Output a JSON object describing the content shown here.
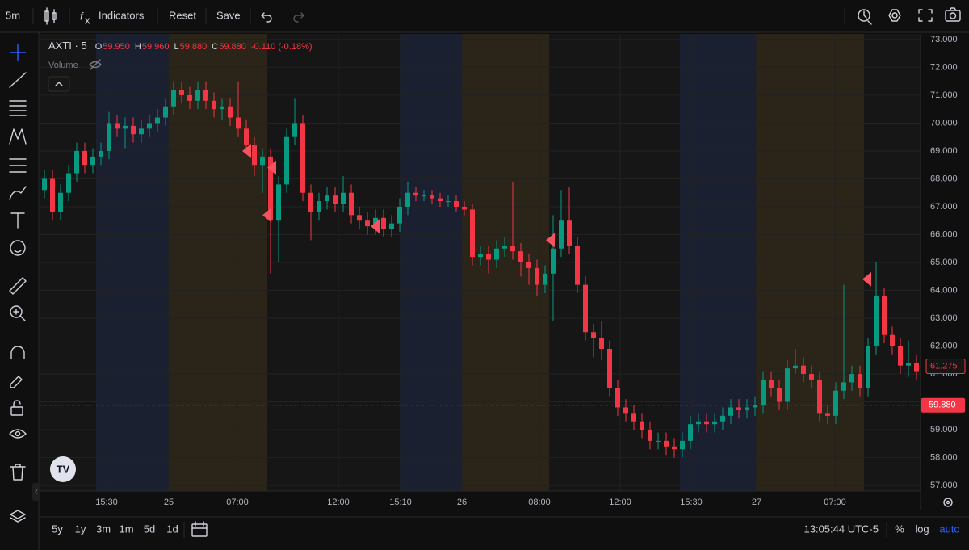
{
  "toolbar": {
    "interval": "5m",
    "indicators": "Indicators",
    "reset": "Reset",
    "save": "Save"
  },
  "chart_data": {
    "type": "candlestick",
    "symbol": "AXTI · 5",
    "ohlc": [
      {
        "key": "O",
        "value": {
          "value": 59.95,
          "label": "59.950"
        }
      },
      {
        "key": "H",
        "value": {
          "value": 59.96,
          "label": "59.960"
        }
      },
      {
        "key": "L",
        "value": {
          "value": 59.88,
          "label": "59.880"
        }
      },
      {
        "key": "C",
        "value": {
          "value": 59.88,
          "label": "59.880"
        }
      }
    ],
    "change": "-0.110 (-0.18%)",
    "volume": "Volume",
    "up_color": "#089981",
    "down_color": "#f23645",
    "ylim": [
      56.8,
      73.2
    ],
    "yticks": [
      {
        "value": 73,
        "label": "73.000"
      },
      {
        "value": 72,
        "label": "72.000"
      },
      {
        "value": 71,
        "label": "71.000"
      },
      {
        "value": 70,
        "label": "70.000"
      },
      {
        "value": 69,
        "label": "69.000"
      },
      {
        "value": 68,
        "label": "68.000"
      },
      {
        "value": 67,
        "label": "67.000"
      },
      {
        "value": 66,
        "label": "66.000"
      },
      {
        "value": 65,
        "label": "65.000"
      },
      {
        "value": 64,
        "label": "64.000"
      },
      {
        "value": 63,
        "label": "63.000"
      },
      {
        "value": 62,
        "label": "62.000"
      },
      {
        "value": 61,
        "label": "61.000"
      },
      {
        "value": 60,
        "label": "60.000"
      },
      {
        "value": 59,
        "label": "59.000"
      },
      {
        "value": 58,
        "label": "58.000"
      },
      {
        "value": 57,
        "label": "57.000"
      }
    ],
    "xlim": [
      0,
      109
    ],
    "xticks": [
      {
        "value": 8.2,
        "label": "15:30"
      },
      {
        "value": 15.9,
        "label": "25"
      },
      {
        "value": 24.4,
        "label": "07:00"
      },
      {
        "value": 36.9,
        "label": "12:00"
      },
      {
        "value": 44.6,
        "label": "15:10"
      },
      {
        "value": 52.2,
        "label": "26"
      },
      {
        "value": 61.8,
        "label": "08:00"
      },
      {
        "value": 71.8,
        "label": "12:00"
      },
      {
        "value": 80.6,
        "label": "15:30"
      },
      {
        "value": 88.7,
        "label": "27"
      },
      {
        "value": 98.4,
        "label": "07:00"
      }
    ],
    "grid": true,
    "sessions": [
      {
        "start": 6.9,
        "end": 15.9,
        "color": "#1a2030"
      },
      {
        "start": 15.9,
        "end": 28.1,
        "color": "#2a2419"
      },
      {
        "start": 44.5,
        "end": 52.2,
        "color": "#1a2030"
      },
      {
        "start": 52.2,
        "end": 63,
        "color": "#2a2419"
      },
      {
        "start": 79.2,
        "end": 88.6,
        "color": "#1a2030"
      },
      {
        "start": 88.6,
        "end": 102,
        "color": "#2a2419"
      }
    ],
    "open": [
      67.6,
      68,
      66.8,
      67.5,
      68.2,
      69,
      68.5,
      68.8,
      69,
      70,
      69.8,
      69.9,
      69.6,
      69.8,
      70,
      70.2,
      70.6,
      71.2,
      71,
      70.8,
      71.2,
      70.8,
      70.5,
      70.6,
      70.2,
      69.8,
      69.2,
      68.5,
      68.8,
      66.5,
      67.8,
      69.5,
      70,
      67.5,
      66.8,
      67.2,
      67.4,
      67.1,
      67.5,
      66.7,
      66.5,
      66.3,
      66.6,
      66.2,
      66.4,
      67,
      67.5,
      67.4,
      67.4,
      67.3,
      67.2,
      67.2,
      67,
      66.9,
      65.2,
      65.3,
      65.1,
      65.5,
      65.6,
      65.4,
      65,
      64.8,
      64.2,
      64.6,
      65.5,
      66.5,
      65.6,
      64.2,
      62.5,
      62.3,
      61.9,
      60.5,
      59.8,
      59.6,
      59.3,
      59,
      58.6,
      58.6,
      58.4,
      58.3,
      58.6,
      59.2,
      59.3,
      59.2,
      59.3,
      59.5,
      59.8,
      59.7,
      59.8,
      59.9,
      60.8,
      60.5,
      60,
      61.2,
      61.3,
      61,
      60.8,
      59.6,
      59.5,
      60.4,
      60.7,
      61,
      60.5,
      62,
      63.8,
      62.4,
      62,
      61.3,
      61.4
    ],
    "high": [
      68.3,
      68.3,
      67.8,
      68.5,
      69.3,
      69.3,
      69.1,
      69.3,
      70.4,
      70.3,
      70.2,
      70.2,
      70.1,
      70.3,
      70.5,
      70.9,
      71.5,
      71.5,
      71.3,
      71.5,
      71.5,
      71.1,
      70.9,
      70.9,
      71.5,
      70.1,
      69.5,
      69.1,
      69.1,
      68.1,
      69.8,
      70.9,
      70.3,
      67.8,
      67.5,
      67.7,
      67.7,
      68.1,
      67.8,
      67,
      66.8,
      66.9,
      66.9,
      66.7,
      67.3,
      67.9,
      67.7,
      67.6,
      67.6,
      67.5,
      67.4,
      67.4,
      67.2,
      67.1,
      65.6,
      65.6,
      65.8,
      65.9,
      67.9,
      65.7,
      65.3,
      65.1,
      64.9,
      66.7,
      67.6,
      67.7,
      65.9,
      64.5,
      62.8,
      62.9,
      62.2,
      60.8,
      60.1,
      59.9,
      59.6,
      59.3,
      58.9,
      58.9,
      58.7,
      58.9,
      59.5,
      59.6,
      59.6,
      59.6,
      59.8,
      60.1,
      60.1,
      60.1,
      60.2,
      61.1,
      61.1,
      60.8,
      61.5,
      61.9,
      61.6,
      61.3,
      61.1,
      59.9,
      60.7,
      64.2,
      61.3,
      61.3,
      62.3,
      65,
      64.1,
      62.7,
      62.3,
      62.2,
      61.7
    ],
    "low": [
      67.3,
      66.5,
      66.5,
      67.2,
      67.9,
      68.2,
      68.2,
      68.5,
      68.7,
      69.5,
      69.1,
      69.3,
      69.3,
      69.5,
      69.7,
      69.9,
      70.3,
      70.7,
      70.5,
      70.5,
      70.5,
      70.2,
      70.1,
      69.9,
      69.5,
      68.9,
      68.1,
      67.5,
      64.6,
      65,
      67.5,
      69.2,
      67.2,
      65.8,
      66.5,
      66.9,
      66.8,
      66.8,
      66.4,
      66.2,
      66,
      66,
      65.9,
      65.9,
      66.1,
      66.7,
      67.2,
      67.2,
      67.1,
      67,
      67,
      66.8,
      66.7,
      64.9,
      64.9,
      64.6,
      64.8,
      65.2,
      65.1,
      64.5,
      64.2,
      63.8,
      63.9,
      62.9,
      65.2,
      65.3,
      63.9,
      62.2,
      61.6,
      61.5,
      60.2,
      59.5,
      59.3,
      59,
      58.7,
      58.3,
      58.3,
      58.1,
      58,
      58,
      58.3,
      58.9,
      58.9,
      58.9,
      59,
      59.2,
      59.4,
      59.4,
      59.5,
      59.6,
      60.2,
      59.7,
      59.7,
      61,
      60.7,
      60.5,
      59.3,
      59.2,
      59.2,
      60.1,
      60.4,
      60.2,
      60.2,
      61.7,
      62.1,
      61.7,
      61,
      60.9,
      60.8
    ],
    "close": [
      68,
      66.8,
      67.5,
      68.2,
      69,
      68.5,
      68.8,
      69,
      70,
      69.8,
      69.9,
      69.6,
      69.8,
      70,
      70.2,
      70.6,
      71.2,
      71,
      70.8,
      71.2,
      70.8,
      70.5,
      70.6,
      70.2,
      69.8,
      69.2,
      68.5,
      68.8,
      66.5,
      67.8,
      69.5,
      70,
      67.5,
      66.8,
      67.2,
      67.4,
      67.1,
      67.5,
      66.7,
      66.5,
      66.3,
      66.6,
      66.2,
      66.4,
      67,
      67.5,
      67.4,
      67.4,
      67.3,
      67.2,
      67.2,
      67,
      66.9,
      65.2,
      65.3,
      65.1,
      65.5,
      65.6,
      65.4,
      65,
      64.8,
      64.2,
      64.6,
      65.5,
      66.5,
      65.6,
      64.2,
      62.5,
      62.3,
      61.9,
      60.5,
      59.8,
      59.6,
      59.3,
      59,
      58.6,
      58.6,
      58.4,
      58.3,
      58.6,
      59.2,
      59.3,
      59.2,
      59.3,
      59.5,
      59.8,
      59.7,
      59.8,
      59.9,
      60.8,
      60.5,
      60,
      61.2,
      61.3,
      61,
      60.8,
      59.6,
      59.5,
      60.4,
      60.7,
      61,
      60.5,
      62,
      63.8,
      62.4,
      62,
      61.3,
      61.4,
      61.1
    ],
    "markers": [
      {
        "x": 25.7,
        "y": 69.0
      },
      {
        "x": 28.8,
        "y": 68.4
      },
      {
        "x": 28.2,
        "y": 66.7
      },
      {
        "x": 41.6,
        "y": 66.3
      },
      {
        "x": 63.3,
        "y": 65.8
      },
      {
        "x": 102.5,
        "y": 64.4
      }
    ],
    "marker_color": "#f7525f",
    "last_visible": 61.275,
    "current_price": {
      "value": 59.88,
      "label": "59.880"
    }
  },
  "bottom_bar": {
    "ranges": [
      "5y",
      "1y",
      "3m",
      "1m",
      "5d",
      "1d"
    ],
    "clock": "13:05:44 UTC-5",
    "percent": "%",
    "log": "log",
    "auto": "auto"
  }
}
